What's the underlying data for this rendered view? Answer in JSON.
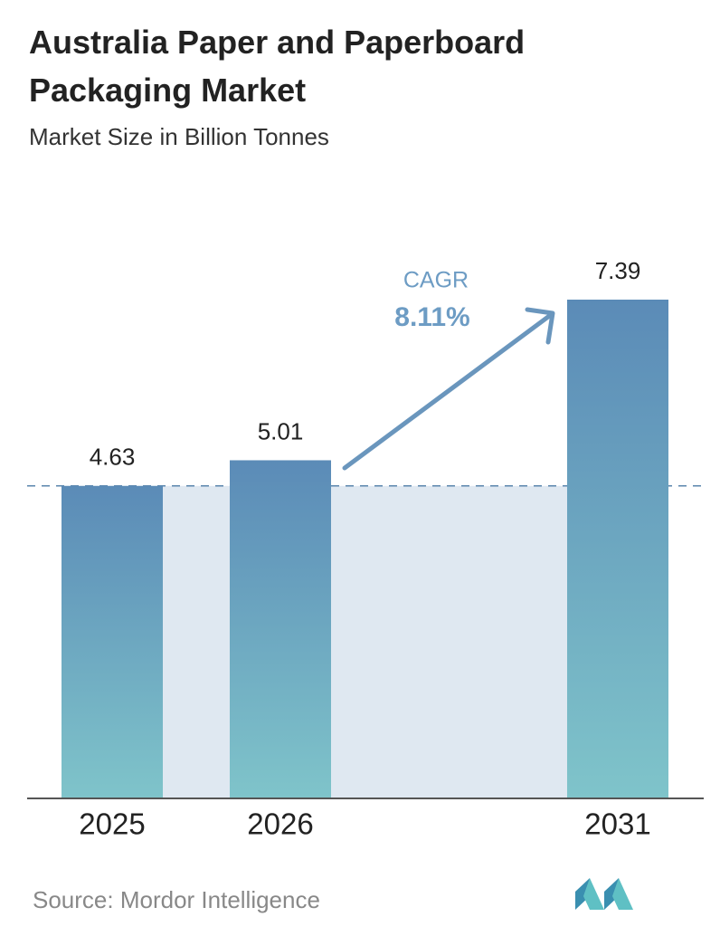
{
  "chart_data": {
    "type": "bar",
    "title": "Australia Paper and Paperboard Packaging Market",
    "subtitle": "Market Size in Billion Tonnes",
    "categories": [
      "2025",
      "2026",
      "2031"
    ],
    "values": [
      4.63,
      5.01,
      7.39
    ],
    "annotation": {
      "title": "CAGR",
      "text": "8.11%"
    },
    "source": "Source: Mordor Intelligence"
  }
}
